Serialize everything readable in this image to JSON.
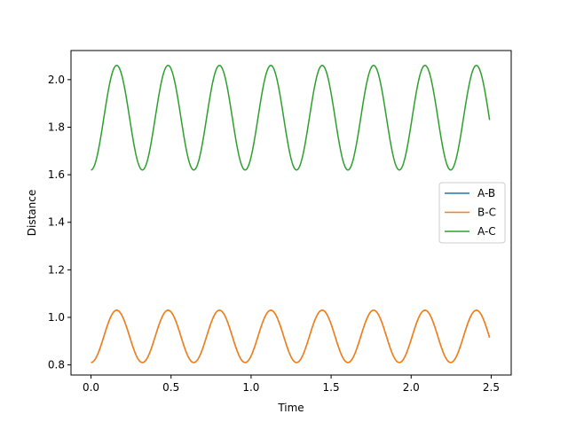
{
  "chart_data": {
    "type": "line",
    "title": "",
    "xlabel": "Time",
    "ylabel": "Distance",
    "xlim": [
      -0.125,
      2.625
    ],
    "ylim": [
      0.7575,
      2.1225
    ],
    "xticks": [
      0.0,
      0.5,
      1.0,
      1.5,
      2.0,
      2.5
    ],
    "xtick_labels": [
      "0.0",
      "0.5",
      "1.0",
      "1.5",
      "2.0",
      "2.5"
    ],
    "yticks": [
      0.8,
      1.0,
      1.2,
      1.4,
      1.6,
      1.8,
      2.0
    ],
    "ytick_labels": [
      "0.8",
      "1.0",
      "1.2",
      "1.4",
      "1.6",
      "1.8",
      "2.0"
    ],
    "grid": false,
    "legend_position": "center-right",
    "x_range": [
      0.0,
      2.49
    ],
    "series": [
      {
        "name": "A-B",
        "color": "#1f77b4",
        "min": 0.81,
        "max": 1.03,
        "period": 0.321,
        "phase_start": "minimum",
        "end_value": 0.935
      },
      {
        "name": "B-C",
        "color": "#ff7f0e",
        "min": 0.81,
        "max": 1.03,
        "period": 0.321,
        "phase_start": "minimum",
        "end_value": 0.935
      },
      {
        "name": "A-C",
        "color": "#2ca02c",
        "min": 1.62,
        "max": 2.06,
        "period": 0.321,
        "phase_start": "minimum",
        "end_value": 1.89
      }
    ]
  }
}
